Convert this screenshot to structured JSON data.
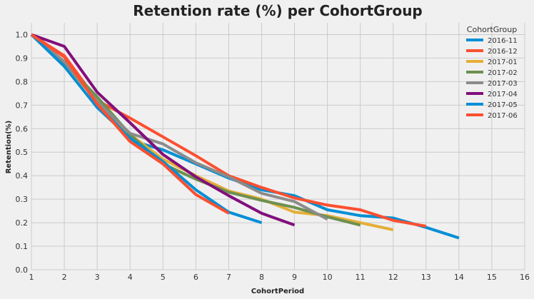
{
  "chart_data": {
    "type": "line",
    "title": "Retention rate (%) per CohortGroup",
    "xlabel": "CohortPeriod",
    "ylabel": "Retention(%)",
    "xlim": [
      1,
      16
    ],
    "ylim": [
      0.0,
      1.05
    ],
    "xticks": [
      "1",
      "2",
      "3",
      "4",
      "5",
      "6",
      "7",
      "8",
      "9",
      "10",
      "11",
      "12",
      "13",
      "14",
      "15",
      "16"
    ],
    "yticks": [
      "0.0",
      "0.1",
      "0.2",
      "0.3",
      "0.4",
      "0.5",
      "0.6",
      "0.7",
      "0.8",
      "0.9",
      "1.0"
    ],
    "grid": true,
    "legend_title": "CohortGroup",
    "legend_position": "top-right",
    "series": [
      {
        "name": "2016-11",
        "color": "#008fd5",
        "x": [
          1,
          2,
          3,
          4,
          5,
          6,
          7,
          8,
          9,
          10,
          11,
          12,
          13,
          14
        ],
        "values": [
          1.0,
          0.87,
          0.73,
          0.55,
          0.51,
          0.45,
          0.39,
          0.34,
          0.315,
          0.255,
          0.23,
          0.22,
          0.18,
          0.135
        ]
      },
      {
        "name": "2016-12",
        "color": "#fc4f30",
        "x": [
          1,
          2,
          3,
          4,
          5,
          6,
          7,
          8,
          9,
          10,
          11,
          12,
          13
        ],
        "values": [
          1.0,
          0.91,
          0.72,
          0.645,
          0.565,
          0.485,
          0.4,
          0.35,
          0.305,
          0.275,
          0.255,
          0.21,
          0.185
        ]
      },
      {
        "name": "2017-01",
        "color": "#e5ae38",
        "x": [
          1,
          2,
          3,
          4,
          5,
          6,
          7,
          8,
          9,
          10,
          11,
          12
        ],
        "values": [
          1.0,
          0.87,
          0.72,
          0.575,
          0.47,
          0.4,
          0.335,
          0.3,
          0.245,
          0.23,
          0.2,
          0.17
        ]
      },
      {
        "name": "2017-02",
        "color": "#6d904f",
        "x": [
          1,
          2,
          3,
          4,
          5,
          6,
          7,
          8,
          9,
          10,
          11
        ],
        "values": [
          1.0,
          0.88,
          0.735,
          0.575,
          0.45,
          0.385,
          0.33,
          0.295,
          0.265,
          0.225,
          0.19
        ]
      },
      {
        "name": "2017-03",
        "color": "#8b8b8b",
        "x": [
          1,
          2,
          3,
          4,
          5,
          6,
          7,
          8,
          9,
          10
        ],
        "values": [
          1.0,
          0.885,
          0.715,
          0.58,
          0.535,
          0.455,
          0.395,
          0.325,
          0.29,
          0.215
        ]
      },
      {
        "name": "2017-04",
        "color": "#810f7c",
        "x": [
          1,
          2,
          3,
          4,
          5,
          6,
          7,
          8,
          9
        ],
        "values": [
          1.0,
          0.95,
          0.755,
          0.625,
          0.49,
          0.395,
          0.315,
          0.24,
          0.19
        ]
      },
      {
        "name": "2017-05",
        "color": "#008fd5",
        "x": [
          1,
          2,
          3,
          4,
          5,
          6,
          7,
          8
        ],
        "values": [
          1.0,
          0.865,
          0.69,
          0.56,
          0.46,
          0.34,
          0.245,
          0.2
        ]
      },
      {
        "name": "2017-06",
        "color": "#fc4f30",
        "x": [
          1,
          2,
          3,
          4,
          5,
          6,
          7
        ],
        "values": [
          1.0,
          0.905,
          0.705,
          0.545,
          0.45,
          0.32,
          0.24
        ]
      }
    ]
  }
}
